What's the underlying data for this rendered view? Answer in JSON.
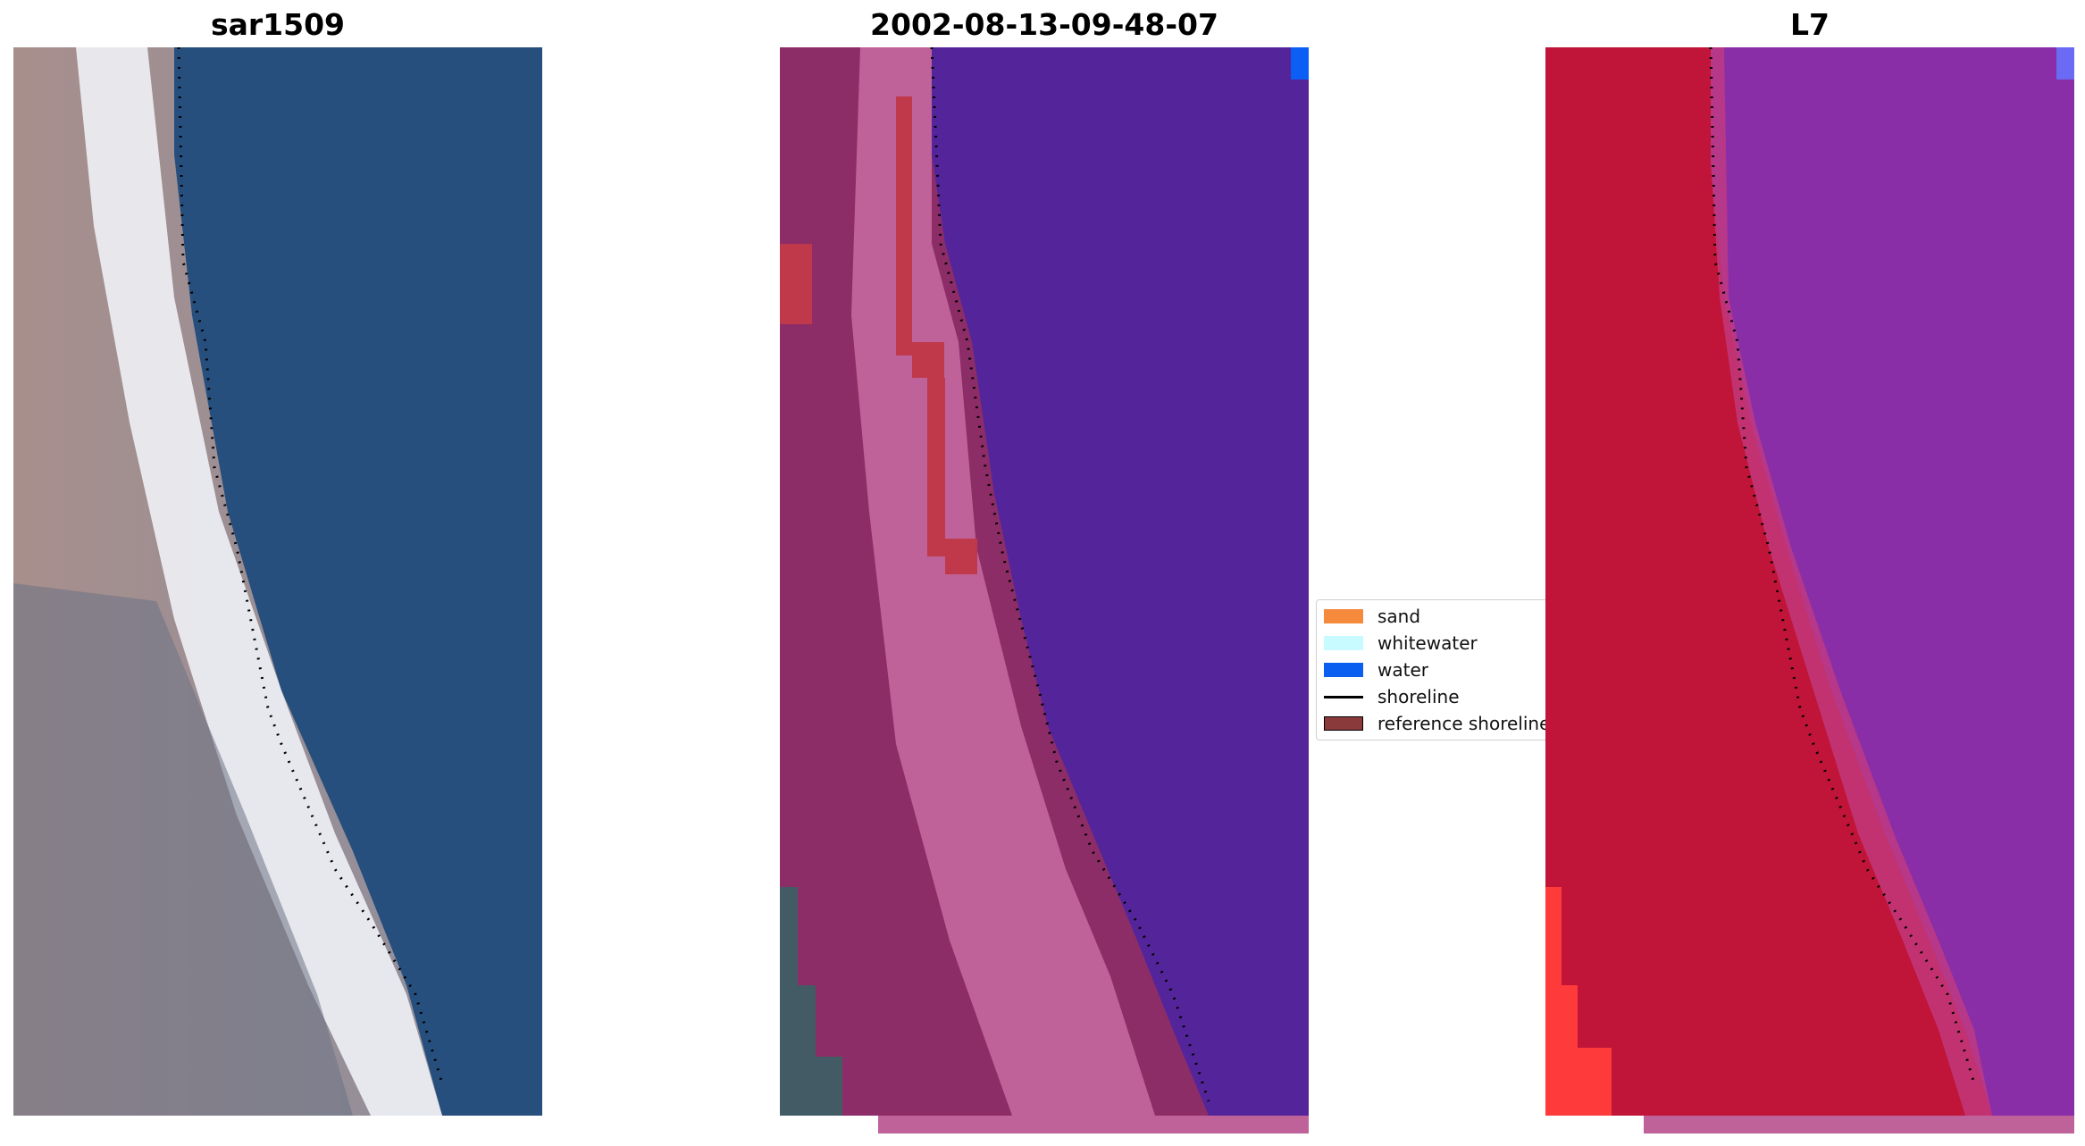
{
  "panels": [
    {
      "title": "sar1509"
    },
    {
      "title": "2002-08-13-09-48-07"
    },
    {
      "title": "L7"
    }
  ],
  "legend": {
    "items": [
      {
        "label": "sand",
        "color": "#f58a3c",
        "kind": "patch"
      },
      {
        "label": "whitewater",
        "color": "#c8fbff",
        "kind": "patch"
      },
      {
        "label": "water",
        "color": "#0a5ff0",
        "kind": "patch"
      },
      {
        "label": "shoreline",
        "color": "#000000",
        "kind": "line"
      },
      {
        "label": "reference shoreline",
        "color": "#8a3a3a",
        "kind": "patch"
      }
    ]
  },
  "colors": {
    "sar_sand": "#9a9aa6",
    "sar_beach": "#eef0f4",
    "sar_water": "#274f7d",
    "class_land": "#8d2d67",
    "class_beach": "#c0629a",
    "class_water": "#54259a",
    "class_red": "#c0394a",
    "class_gray": "#435b65",
    "class_blue_corner": "#0c5ff4",
    "l7_land": "#c01438",
    "l7_water": "#8a2ea8",
    "l7_bright_red": "#ff3a3a",
    "l7_corner": "#6a6af4",
    "shoreline": "#000000"
  }
}
